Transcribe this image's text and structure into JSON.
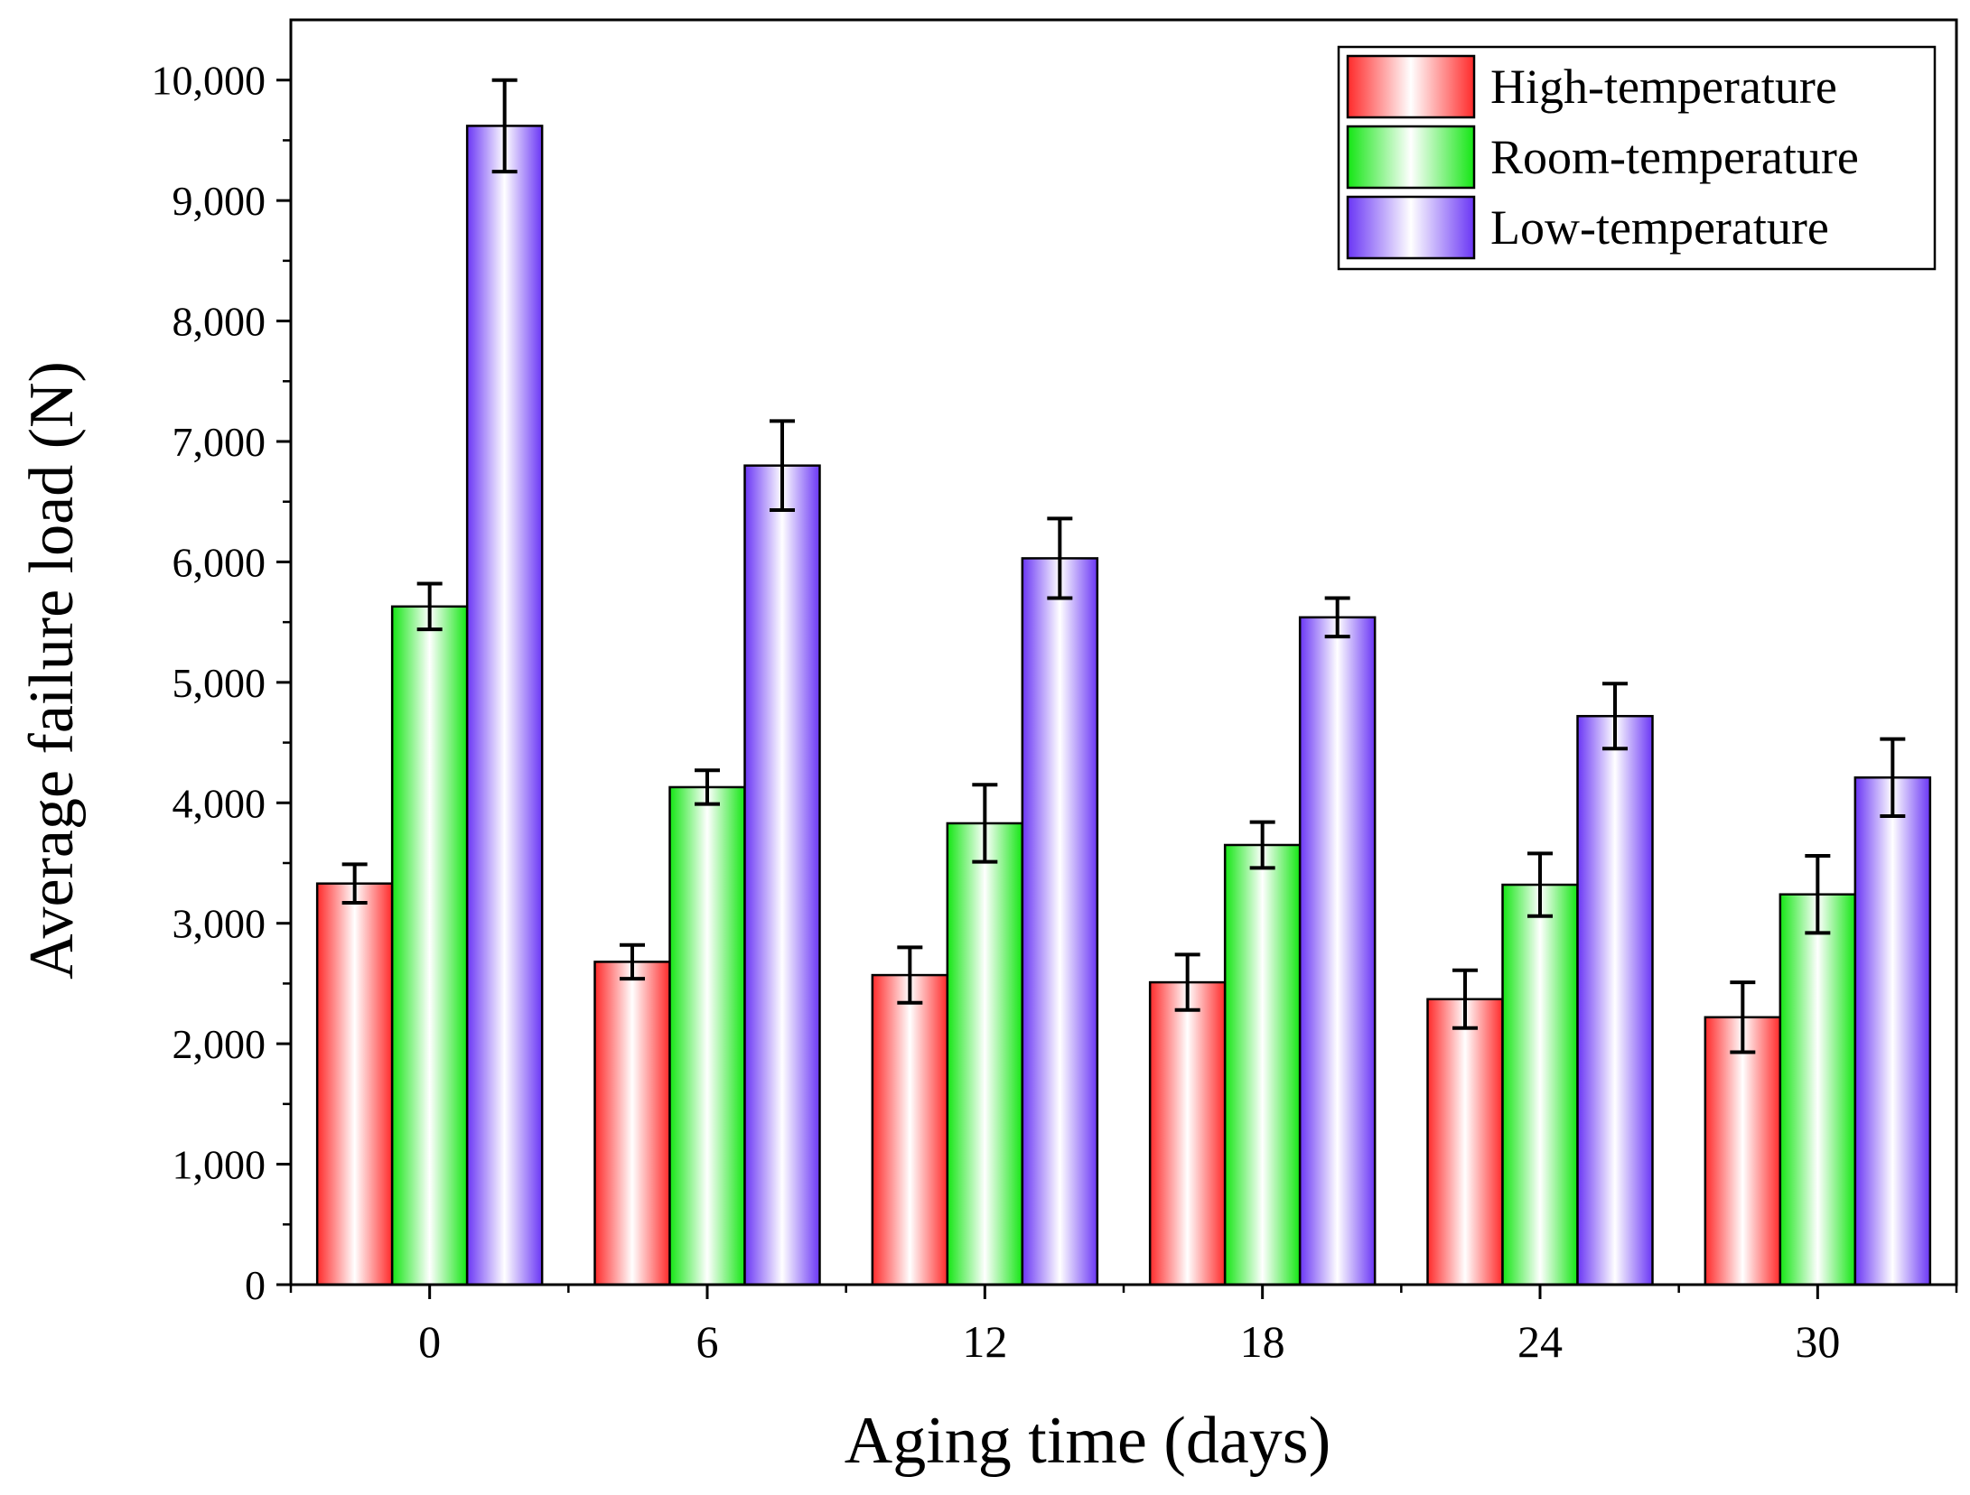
{
  "chart_data": {
    "type": "bar",
    "title": "",
    "xlabel": "Aging time (days)",
    "ylabel": "Average failure load (N)",
    "ylim": [
      0,
      10500
    ],
    "yticks": [
      0,
      1000,
      2000,
      3000,
      4000,
      5000,
      6000,
      7000,
      8000,
      9000,
      10000
    ],
    "ytick_labels": [
      "0",
      "1,000",
      "2,000",
      "3,000",
      "4,000",
      "5,000",
      "6,000",
      "7,000",
      "8,000",
      "9,000",
      "10,000"
    ],
    "categories": [
      "0",
      "6",
      "12",
      "18",
      "24",
      "30"
    ],
    "legend_position": "top-right",
    "grid": false,
    "series": [
      {
        "name": "High-temperature",
        "color": "#ff2a2a",
        "values": [
          3330,
          2680,
          2570,
          2510,
          2370,
          2220
        ],
        "errors": [
          160,
          140,
          230,
          230,
          240,
          290
        ]
      },
      {
        "name": "Room-temperature",
        "color": "#14e614",
        "values": [
          5630,
          4130,
          3830,
          3650,
          3320,
          3240
        ],
        "errors": [
          190,
          140,
          320,
          190,
          260,
          320
        ]
      },
      {
        "name": "Low-temperature",
        "color": "#6a36f5",
        "values": [
          9620,
          6800,
          6030,
          5540,
          4720,
          4210
        ],
        "errors": [
          380,
          370,
          330,
          160,
          270,
          320
        ]
      }
    ]
  }
}
